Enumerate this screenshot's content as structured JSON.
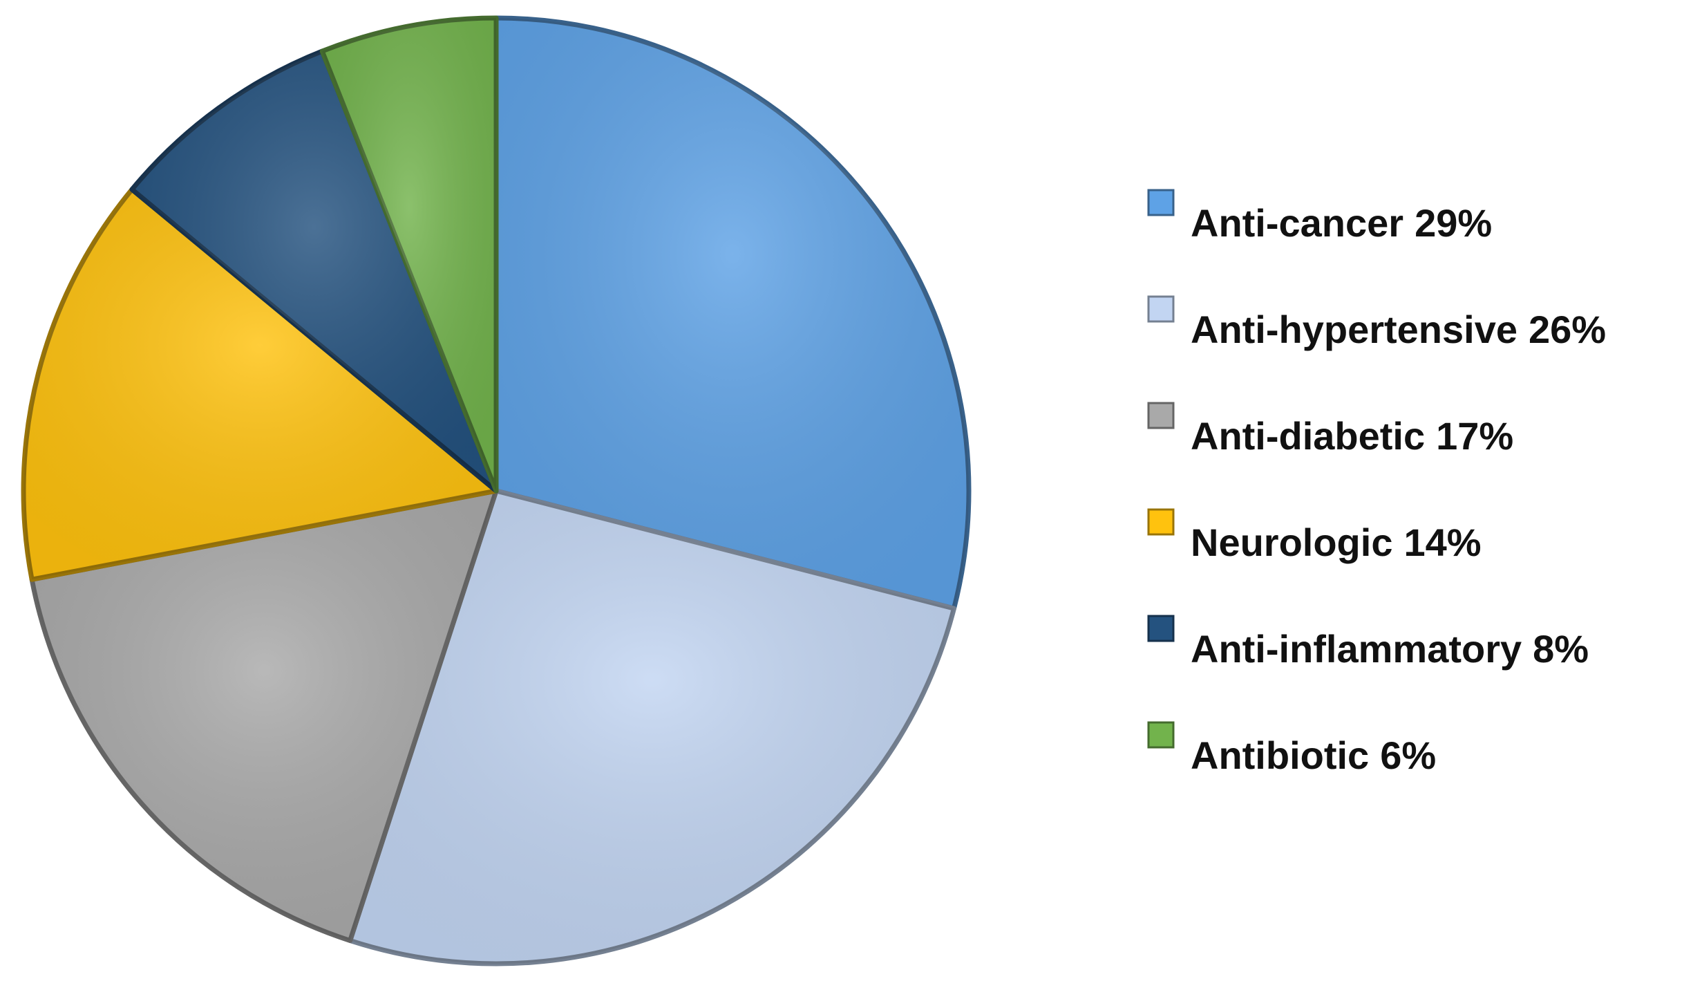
{
  "chart_data": {
    "type": "pie",
    "categories": [
      "Anti-cancer",
      "Anti-hypertensive",
      "Anti-diabetic",
      "Neurologic",
      "Anti-inflammatory",
      "Antibiotic"
    ],
    "values": [
      29,
      26,
      17,
      14,
      8,
      6
    ],
    "value_labels": [
      "29%",
      "26%",
      "17%",
      "14%",
      "8%",
      "6%"
    ],
    "colors": [
      "#5ea2e6",
      "#c2d5f2",
      "#a9a9a9",
      "#ffc20e",
      "#24527f",
      "#72b34c"
    ],
    "legend": "right"
  }
}
